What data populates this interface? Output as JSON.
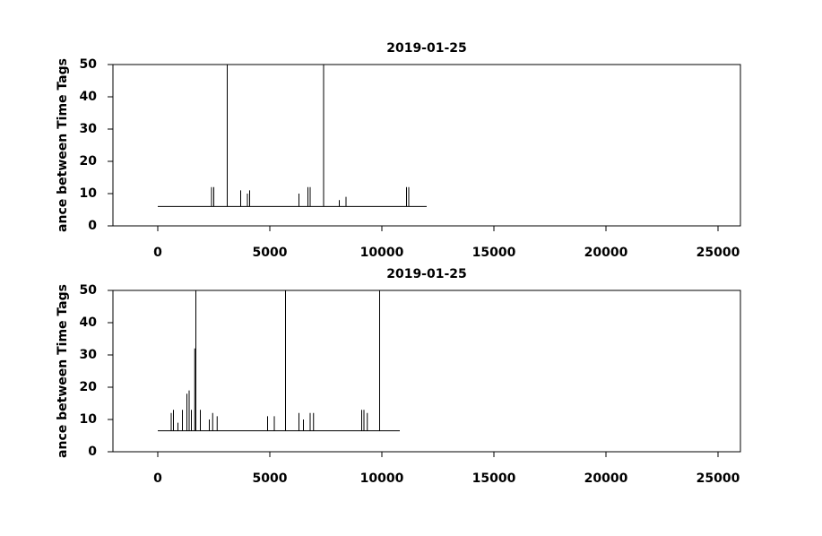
{
  "chart_data": [
    {
      "type": "line",
      "title": "2019-01-25",
      "ylabel": "ance between Time Tags",
      "color": "#000000",
      "x": [
        0,
        2400,
        2400,
        2400,
        2500,
        2500,
        2500,
        3100,
        3100,
        3100,
        3700,
        3700,
        3700,
        4000,
        4000,
        4000,
        4100,
        4100,
        4100,
        6300,
        6300,
        6300,
        6700,
        6700,
        6700,
        6800,
        6800,
        6800,
        7400,
        7400,
        7400,
        8100,
        8100,
        8100,
        8400,
        8400,
        8400,
        11100,
        11100,
        11100,
        11200,
        11200,
        11200,
        12000
      ],
      "values": [
        6,
        6,
        12,
        6,
        6,
        12,
        6,
        6,
        50,
        6,
        6,
        11,
        6,
        6,
        10,
        6,
        6,
        11,
        6,
        6,
        10,
        6,
        6,
        12,
        6,
        6,
        12,
        6,
        6,
        50,
        6,
        6,
        8,
        6,
        6,
        9,
        6,
        6,
        12,
        6,
        6,
        12,
        6,
        6
      ],
      "xlim": [
        -2000,
        26000
      ],
      "ylim": [
        0,
        50
      ],
      "xticks": [
        0,
        5000,
        10000,
        15000,
        20000,
        25000
      ],
      "yticks": [
        0,
        10,
        20,
        30,
        40,
        50
      ]
    },
    {
      "type": "line",
      "title": "2019-01-25",
      "ylabel": "ance between Time Tags",
      "color": "#000000",
      "x": [
        0,
        600,
        600,
        600,
        700,
        700,
        700,
        900,
        900,
        900,
        1100,
        1100,
        1100,
        1300,
        1300,
        1300,
        1400,
        1400,
        1400,
        1500,
        1500,
        1500,
        1650,
        1650,
        1650,
        1700,
        1700,
        1700,
        1900,
        1900,
        1900,
        2300,
        2300,
        2300,
        2450,
        2450,
        2450,
        2650,
        2650,
        2650,
        4900,
        4900,
        4900,
        5200,
        5200,
        5200,
        5700,
        5700,
        5700,
        6300,
        6300,
        6300,
        6500,
        6500,
        6500,
        6800,
        6800,
        6800,
        6950,
        6950,
        6950,
        9100,
        9100,
        9100,
        9200,
        9200,
        9200,
        9350,
        9350,
        9350,
        9900,
        9900,
        9900,
        10800
      ],
      "values": [
        6.5,
        6.5,
        12,
        6.5,
        6.5,
        13,
        6.5,
        6.5,
        9,
        6.5,
        6.5,
        13,
        6.5,
        6.5,
        18,
        6.5,
        6.5,
        19,
        6.5,
        6.5,
        13,
        6.5,
        6.5,
        32,
        6.5,
        6.5,
        50,
        6.5,
        6.5,
        13,
        6.5,
        6.5,
        10,
        6.5,
        6.5,
        12,
        6.5,
        6.5,
        11,
        6.5,
        6.5,
        11,
        6.5,
        6.5,
        11,
        6.5,
        6.5,
        50,
        6.5,
        6.5,
        12,
        6.5,
        6.5,
        10,
        6.5,
        6.5,
        12,
        6.5,
        6.5,
        12,
        6.5,
        6.5,
        13,
        6.5,
        6.5,
        13,
        6.5,
        6.5,
        12,
        6.5,
        6.5,
        50,
        6.5,
        6.5
      ],
      "xlim": [
        -2000,
        26000
      ],
      "ylim": [
        0,
        50
      ],
      "xticks": [
        0,
        5000,
        10000,
        15000,
        20000,
        25000
      ],
      "yticks": [
        0,
        10,
        20,
        30,
        40,
        50
      ]
    }
  ]
}
